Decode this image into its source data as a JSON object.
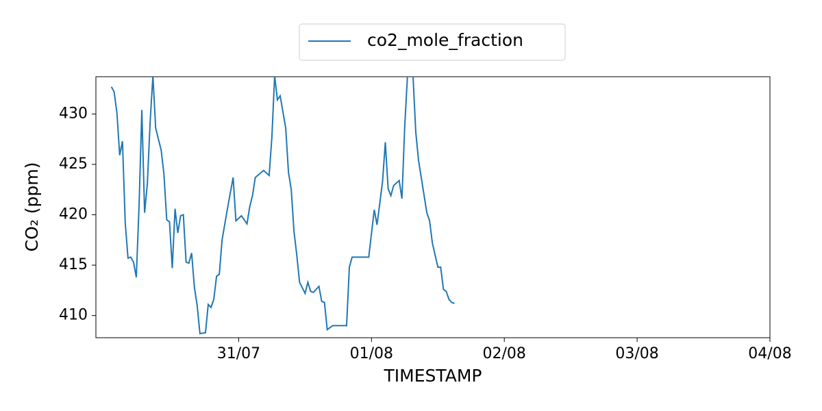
{
  "chart_data": {
    "type": "line",
    "x_label": "TIMESTAMP",
    "y_label": "CO₂ (ppm)",
    "x": [
      "30/07 01:00",
      "30/07 01:30",
      "30/07 02:00",
      "30/07 02:30",
      "30/07 03:00",
      "30/07 03:30",
      "30/07 04:00",
      "30/07 04:30",
      "30/07 05:00",
      "30/07 05:30",
      "30/07 06:00",
      "30/07 06:30",
      "30/07 07:00",
      "30/07 07:30",
      "30/07 08:00",
      "30/07 08:30",
      "30/07 09:00",
      "30/07 10:00",
      "30/07 10:30",
      "30/07 11:00",
      "30/07 11:30",
      "30/07 12:00",
      "30/07 12:30",
      "30/07 13:00",
      "30/07 13:30",
      "30/07 14:00",
      "30/07 14:30",
      "30/07 15:00",
      "30/07 15:30",
      "30/07 16:00",
      "30/07 16:30",
      "30/07 17:00",
      "30/07 18:00",
      "30/07 18:30",
      "30/07 19:00",
      "30/07 19:30",
      "30/07 20:00",
      "30/07 20:30",
      "30/07 21:00",
      "30/07 22:00",
      "30/07 23:00",
      "30/07 23:30",
      "31/07 00:30",
      "31/07 01:30",
      "31/07 02:00",
      "31/07 02:30",
      "31/07 03:00",
      "31/07 04:30",
      "31/07 05:30",
      "31/07 06:00",
      "31/07 06:30",
      "31/07 07:00",
      "31/07 07:30",
      "31/07 08:30",
      "31/07 09:00",
      "31/07 09:30",
      "31/07 10:00",
      "31/07 10:30",
      "31/07 11:00",
      "31/07 12:00",
      "31/07 12:30",
      "31/07 13:00",
      "31/07 13:30",
      "31/07 14:30",
      "31/07 15:00",
      "31/07 15:30",
      "31/07 16:00",
      "31/07 17:00",
      "31/07 19:30",
      "31/07 20:00",
      "31/07 20:30",
      "31/07 23:30",
      "01/08 00:30",
      "01/08 01:00",
      "01/08 02:00",
      "01/08 02:30",
      "01/08 03:00",
      "01/08 03:30",
      "01/08 04:00",
      "01/08 05:00",
      "01/08 05:30",
      "01/08 06:00",
      "01/08 06:30",
      "01/08 07:30",
      "01/08 08:00",
      "01/08 08:30",
      "01/08 10:00",
      "01/08 10:30",
      "01/08 11:00",
      "01/08 12:00",
      "01/08 12:30",
      "01/08 13:00",
      "01/08 13:30",
      "01/08 14:00",
      "01/08 14:30",
      "01/08 15:00"
    ],
    "series": [
      {
        "name": "co2_mole_fraction",
        "color": "#1f77b4",
        "values": [
          432.7,
          432.2,
          430.1,
          425.9,
          427.3,
          419.2,
          415.7,
          415.8,
          415.3,
          413.8,
          420.9,
          430.4,
          420.2,
          423.1,
          429.2,
          433.8,
          428.6,
          426.4,
          424.0,
          419.5,
          419.3,
          414.7,
          420.6,
          418.2,
          419.9,
          420.0,
          415.3,
          415.2,
          416.2,
          412.8,
          411.0,
          408.2,
          408.3,
          411.1,
          410.8,
          411.6,
          413.9,
          414.1,
          417.5,
          420.7,
          423.7,
          419.4,
          419.9,
          419.1,
          420.8,
          421.9,
          423.7,
          424.4,
          423.9,
          427.7,
          433.8,
          431.4,
          431.8,
          428.6,
          424.2,
          422.5,
          418.3,
          416.0,
          413.3,
          412.2,
          413.3,
          412.4,
          412.3,
          412.9,
          411.4,
          411.3,
          408.6,
          409.0,
          409.0,
          414.8,
          415.8,
          415.8,
          420.5,
          419.0,
          423.3,
          427.2,
          422.6,
          421.9,
          422.9,
          423.4,
          421.6,
          428.7,
          433.8,
          433.8,
          428.2,
          425.4,
          420.2,
          419.4,
          417.2,
          414.8,
          414.8,
          412.6,
          412.4,
          411.6,
          411.3,
          411.2
        ]
      }
    ],
    "xlim": [
      "29/07 22:12",
      "04/08 00:00"
    ],
    "xticks": [
      "31/07",
      "01/08",
      "02/08",
      "03/08",
      "04/08"
    ],
    "ylim": [
      407.8,
      433.7
    ],
    "yticks": [
      410,
      415,
      420,
      425,
      430
    ],
    "legend": "upper center"
  }
}
